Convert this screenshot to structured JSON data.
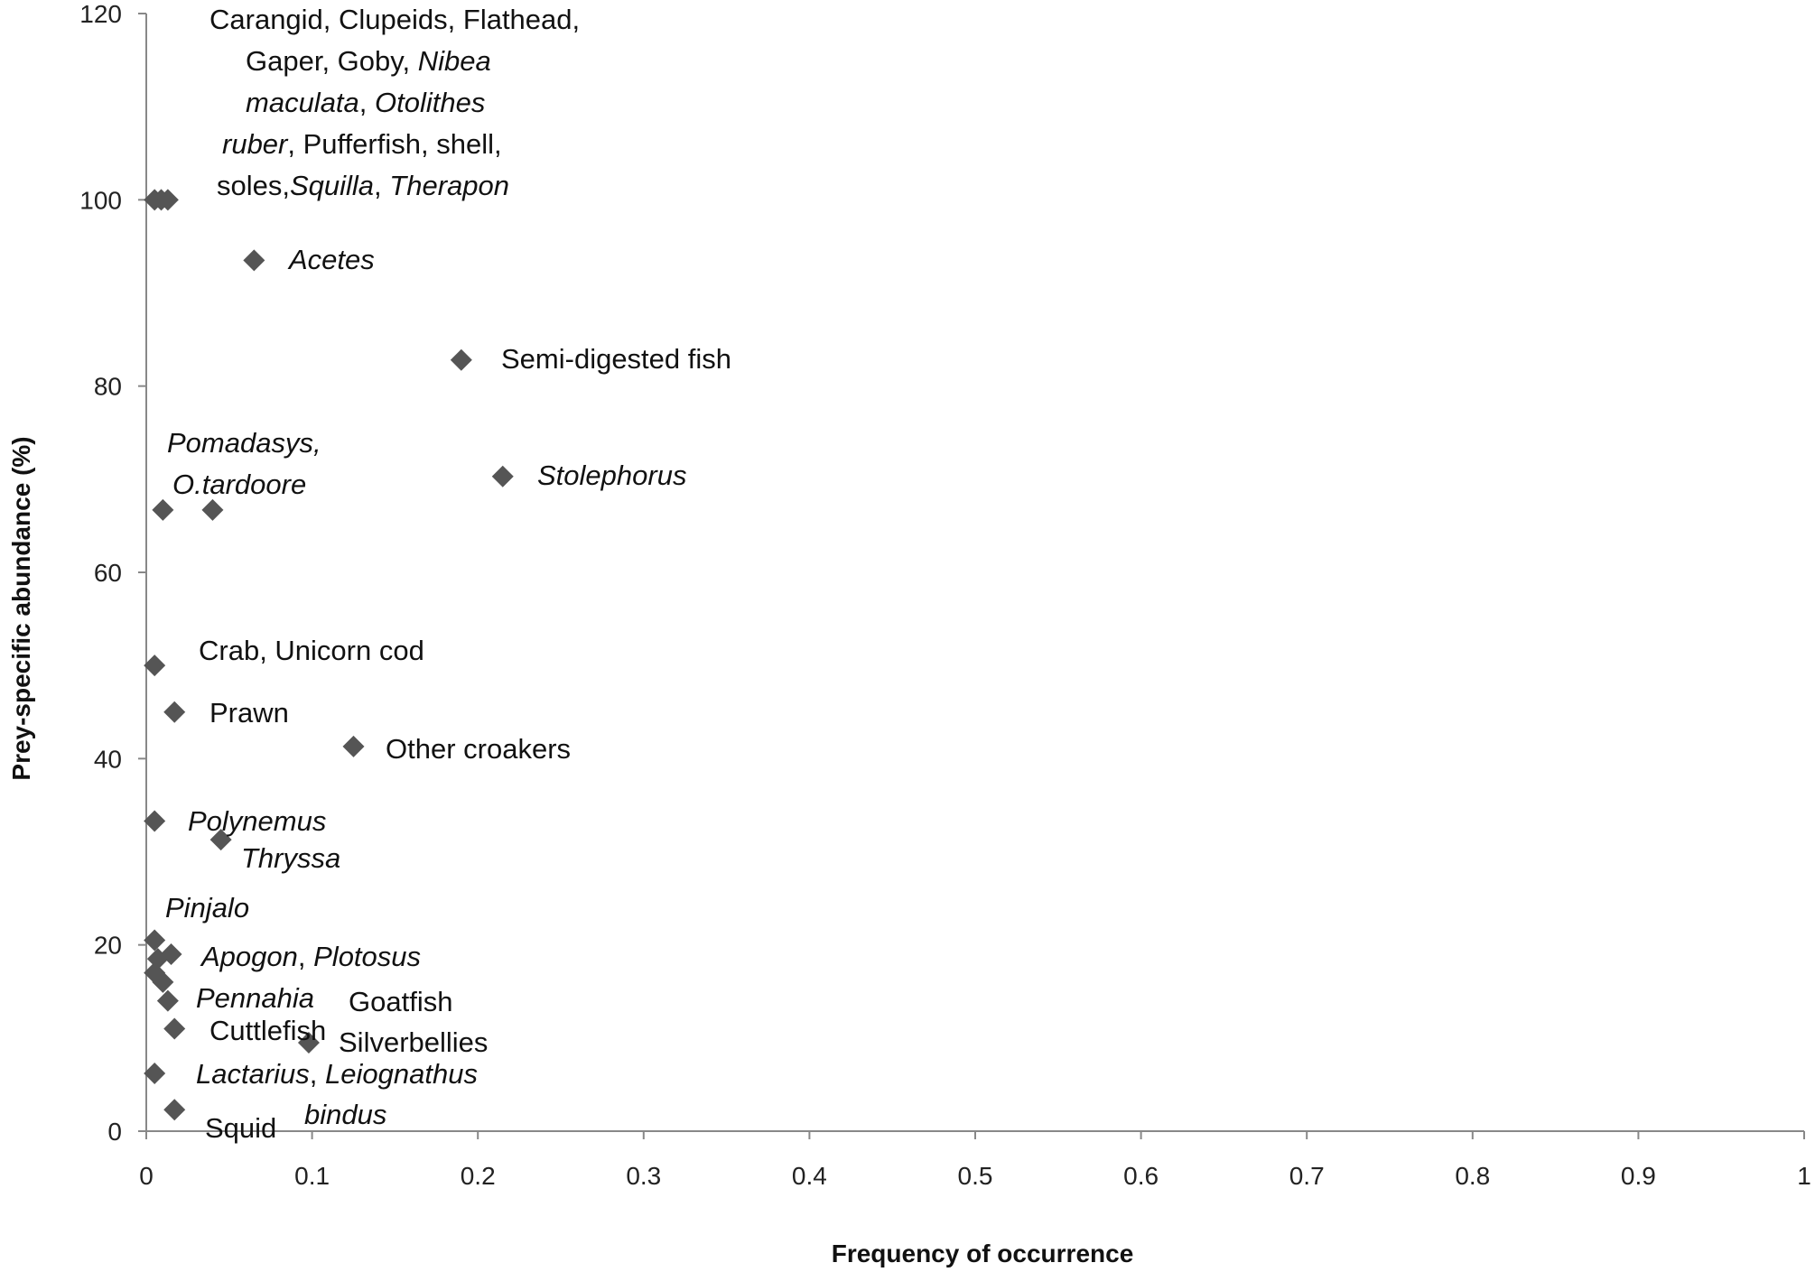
{
  "chart_data": {
    "type": "scatter",
    "xlabel": "Frequency of occurrence",
    "ylabel": "Prey-specific abundance  (%)",
    "xlim": [
      0,
      1
    ],
    "ylim": [
      0,
      120
    ],
    "xticks": [
      "0",
      "0.1",
      "0.2",
      "0.3",
      "0.4",
      "0.5",
      "0.6",
      "0.7",
      "0.8",
      "0.9",
      "1"
    ],
    "yticks": [
      "0",
      "20",
      "40",
      "60",
      "80",
      "100",
      "120"
    ],
    "marker": "diamond",
    "marker_color": "#555555",
    "grid": false,
    "points": [
      {
        "x": 0.005,
        "y": 100
      },
      {
        "x": 0.009,
        "y": 100
      },
      {
        "x": 0.013,
        "y": 100
      },
      {
        "x": 0.065,
        "y": 93.5
      },
      {
        "x": 0.19,
        "y": 82.8
      },
      {
        "x": 0.215,
        "y": 70.3
      },
      {
        "x": 0.01,
        "y": 66.7
      },
      {
        "x": 0.04,
        "y": 66.7
      },
      {
        "x": 0.005,
        "y": 50
      },
      {
        "x": 0.017,
        "y": 45
      },
      {
        "x": 0.125,
        "y": 41.3
      },
      {
        "x": 0.005,
        "y": 33.3
      },
      {
        "x": 0.045,
        "y": 31.3
      },
      {
        "x": 0.005,
        "y": 20.5
      },
      {
        "x": 0.015,
        "y": 19
      },
      {
        "x": 0.007,
        "y": 18.5
      },
      {
        "x": 0.005,
        "y": 17
      },
      {
        "x": 0.01,
        "y": 16
      },
      {
        "x": 0.013,
        "y": 14
      },
      {
        "x": 0.017,
        "y": 11
      },
      {
        "x": 0.098,
        "y": 9.5
      },
      {
        "x": 0.005,
        "y": 6.2
      },
      {
        "x": 0.017,
        "y": 2.3
      }
    ],
    "annotations": [
      {
        "lines": [
          [
            {
              "t": "Carangid, Clupeids, Flathead,",
              "i": false
            }
          ],
          [
            {
              "t": "Gaper, Goby, ",
              "i": false
            },
            {
              "t": "Nibea",
              "i": true
            }
          ],
          [
            {
              "t": "maculata",
              "i": true
            },
            {
              "t": ", ",
              "i": false
            },
            {
              "t": "Otolithes",
              "i": true
            }
          ],
          [
            {
              "t": "ruber",
              "i": true
            },
            {
              "t": ", Pufferfish, shell,",
              "i": false
            }
          ],
          [
            {
              "t": "soles,",
              "i": false
            },
            {
              "t": "Squilla",
              "i": true
            },
            {
              "t": ", ",
              "i": false
            },
            {
              "t": "Therapon",
              "i": true
            }
          ]
        ]
      },
      {
        "lines": [
          [
            {
              "t": "Acetes",
              "i": true
            }
          ]
        ]
      },
      {
        "lines": [
          [
            {
              "t": "Semi-digested fish",
              "i": false
            }
          ]
        ]
      },
      {
        "lines": [
          [
            {
              "t": "Stolephorus",
              "i": true
            }
          ]
        ]
      },
      {
        "lines": [
          [
            {
              "t": "Pomadasys,",
              "i": true
            }
          ],
          [
            {
              "t": "O.tardoore",
              "i": true
            }
          ]
        ]
      },
      {
        "lines": [
          [
            {
              "t": "Crab, Unicorn cod",
              "i": false
            }
          ]
        ]
      },
      {
        "lines": [
          [
            {
              "t": "Prawn",
              "i": false
            }
          ]
        ]
      },
      {
        "lines": [
          [
            {
              "t": "Other croakers",
              "i": false
            }
          ]
        ]
      },
      {
        "lines": [
          [
            {
              "t": "Polynemus",
              "i": true
            }
          ]
        ]
      },
      {
        "lines": [
          [
            {
              "t": "Thryssa",
              "i": true
            }
          ]
        ]
      },
      {
        "lines": [
          [
            {
              "t": "Pinjalo",
              "i": true
            }
          ]
        ]
      },
      {
        "lines": [
          [
            {
              "t": "Apogon",
              "i": true
            },
            {
              "t": ", ",
              "i": false
            },
            {
              "t": "Plotosus",
              "i": true
            }
          ]
        ]
      },
      {
        "lines": [
          [
            {
              "t": "Pennahia",
              "i": true
            }
          ]
        ]
      },
      {
        "lines": [
          [
            {
              "t": "Goatfish",
              "i": false
            }
          ]
        ]
      },
      {
        "lines": [
          [
            {
              "t": "Cuttlefish",
              "i": false
            }
          ]
        ]
      },
      {
        "lines": [
          [
            {
              "t": "Silverbellies",
              "i": false
            }
          ]
        ]
      },
      {
        "lines": [
          [
            {
              "t": "Lactarius",
              "i": true
            },
            {
              "t": ", ",
              "i": false
            },
            {
              "t": "Leiognathus",
              "i": true
            }
          ]
        ]
      },
      {
        "lines": [
          [
            {
              "t": "bindus",
              "i": true
            }
          ]
        ]
      },
      {
        "lines": [
          [
            {
              "t": "Squid",
              "i": false
            }
          ]
        ]
      }
    ]
  }
}
